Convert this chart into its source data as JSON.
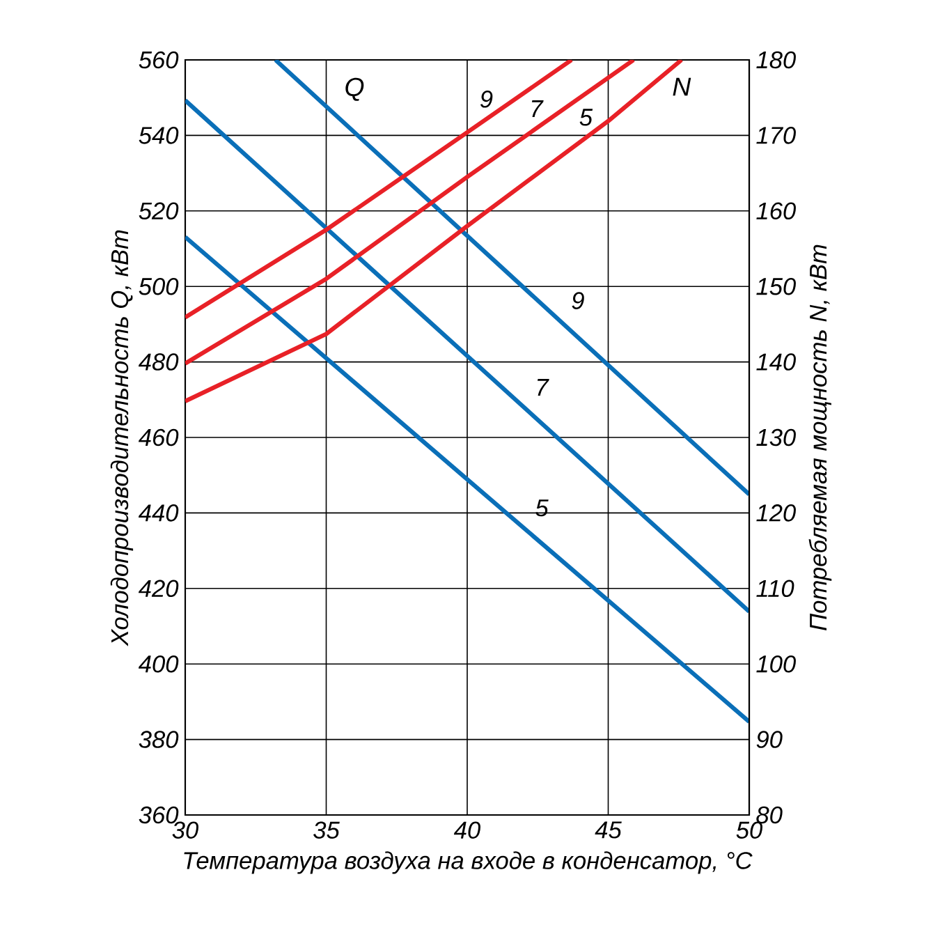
{
  "chart_data": {
    "type": "line",
    "xlabel": "Температура воздуха на входе в конденсатор, °C",
    "ylabel": "Холодопроизводительность Q, кВт",
    "y2label": "Потребляемая мощность N, кВт",
    "xlim": [
      30,
      50
    ],
    "xticks": [
      30,
      35,
      40,
      45,
      50
    ],
    "ylim": [
      360,
      560
    ],
    "yticks": [
      360,
      380,
      400,
      420,
      440,
      460,
      480,
      500,
      520,
      540,
      560
    ],
    "y2lim": [
      80,
      180
    ],
    "y2ticks": [
      80,
      90,
      100,
      110,
      120,
      130,
      140,
      150,
      160,
      170,
      180
    ],
    "grid": true,
    "line_style": "solid",
    "series": [
      {
        "name": "9",
        "color": "#0a6fb8",
        "x": [
          33.2,
          50
        ],
        "values": [
          560,
          444.9
        ]
      },
      {
        "name": "7",
        "color": "#0a6fb8",
        "x": [
          30,
          50
        ],
        "values": [
          549.3,
          413.9
        ]
      },
      {
        "name": "5",
        "color": "#0a6fb8",
        "x": [
          30,
          50
        ],
        "values": [
          513.1,
          384.7
        ]
      },
      {
        "name": "9",
        "color": "#e82127",
        "axis": "y2",
        "x": [
          30,
          35,
          40,
          43.7
        ],
        "values": [
          145.9,
          157.5,
          170.4,
          180
        ]
      },
      {
        "name": "7",
        "color": "#e82127",
        "axis": "y2",
        "x": [
          30,
          35,
          40,
          45.9
        ],
        "values": [
          139.8,
          151,
          164.5,
          180
        ]
      },
      {
        "name": "5",
        "color": "#e82127",
        "axis": "y2",
        "x": [
          30,
          35,
          40,
          45,
          47.6
        ],
        "values": [
          134.8,
          143.7,
          158,
          171.9,
          180
        ]
      }
    ],
    "annotations": [
      "Q",
      "N"
    ]
  }
}
